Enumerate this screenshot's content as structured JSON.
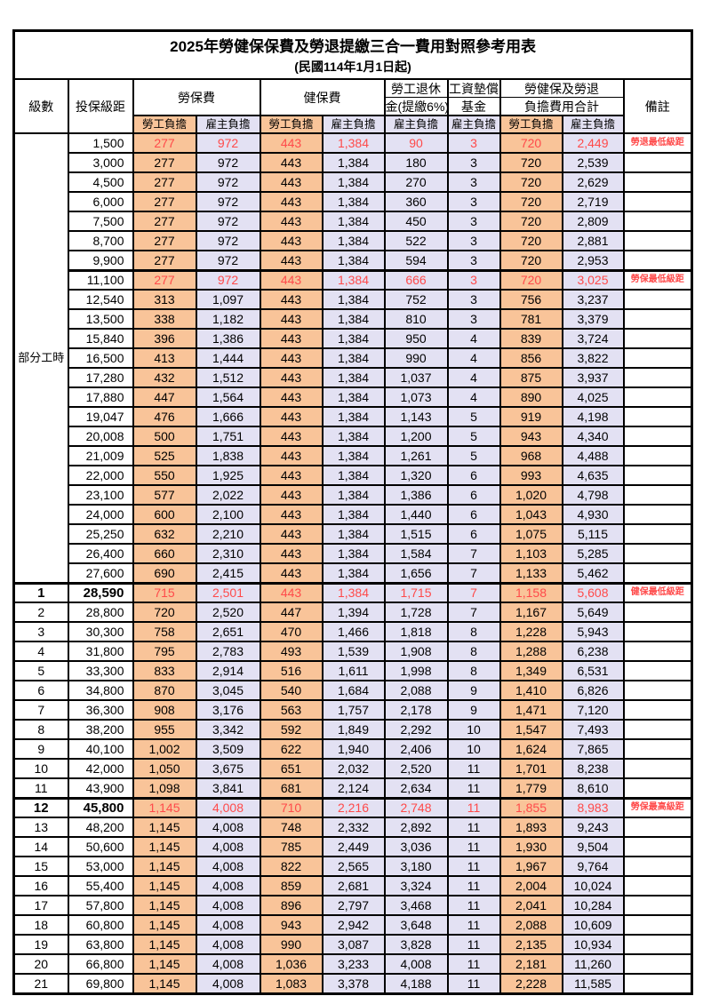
{
  "title": "2025年勞健保保費及勞退提繳三合一費用對照參考用表",
  "subtitle": "(民國114年1月1日起)",
  "part_time_label": "部分工時",
  "part_time_rowspan": 23,
  "colors": {
    "employee_bg": "#F9C499",
    "employer_bg": "#E3E1F3",
    "highlight_red": "#FF4A4A",
    "border": "#000000"
  },
  "header": {
    "level": "級數",
    "bracket": "投保級距",
    "labor_insurance": "勞保費",
    "health_insurance": "健保費",
    "pension_line1": "勞工退休",
    "pension_line2": "金(提繳6%)",
    "wage_fund_line1": "工資墊償",
    "wage_fund_line2": "基金",
    "total_line1": "勞健保及勞退",
    "total_line2": "負擔費用合計",
    "remark": "備註",
    "employee": "勞工負擔",
    "employer": "雇主負擔"
  },
  "rows": [
    {
      "level": "",
      "bracket": "1,500",
      "values": [
        "277",
        "972",
        "443",
        "1,384",
        "90",
        "3",
        "720",
        "2,449"
      ],
      "remark": "勞退最低級距",
      "red": true,
      "thick_top": false,
      "bold": false
    },
    {
      "level": "",
      "bracket": "3,000",
      "values": [
        "277",
        "972",
        "443",
        "1,384",
        "180",
        "3",
        "720",
        "2,539"
      ],
      "remark": "",
      "red": false,
      "thick_top": false,
      "bold": false
    },
    {
      "level": "",
      "bracket": "4,500",
      "values": [
        "277",
        "972",
        "443",
        "1,384",
        "270",
        "3",
        "720",
        "2,629"
      ],
      "remark": "",
      "red": false,
      "thick_top": false,
      "bold": false
    },
    {
      "level": "",
      "bracket": "6,000",
      "values": [
        "277",
        "972",
        "443",
        "1,384",
        "360",
        "3",
        "720",
        "2,719"
      ],
      "remark": "",
      "red": false,
      "thick_top": false,
      "bold": false
    },
    {
      "level": "",
      "bracket": "7,500",
      "values": [
        "277",
        "972",
        "443",
        "1,384",
        "450",
        "3",
        "720",
        "2,809"
      ],
      "remark": "",
      "red": false,
      "thick_top": false,
      "bold": false
    },
    {
      "level": "",
      "bracket": "8,700",
      "values": [
        "277",
        "972",
        "443",
        "1,384",
        "522",
        "3",
        "720",
        "2,881"
      ],
      "remark": "",
      "red": false,
      "thick_top": false,
      "bold": false
    },
    {
      "level": "",
      "bracket": "9,900",
      "values": [
        "277",
        "972",
        "443",
        "1,384",
        "594",
        "3",
        "720",
        "2,953"
      ],
      "remark": "",
      "red": false,
      "thick_top": false,
      "bold": false
    },
    {
      "level": "",
      "bracket": "11,100",
      "values": [
        "277",
        "972",
        "443",
        "1,384",
        "666",
        "3",
        "720",
        "3,025"
      ],
      "remark": "勞保最低級距",
      "red": true,
      "thick_top": true,
      "bold": false
    },
    {
      "level": "",
      "bracket": "12,540",
      "values": [
        "313",
        "1,097",
        "443",
        "1,384",
        "752",
        "3",
        "756",
        "3,237"
      ],
      "remark": "",
      "red": false,
      "thick_top": false,
      "bold": false
    },
    {
      "level": "",
      "bracket": "13,500",
      "values": [
        "338",
        "1,182",
        "443",
        "1,384",
        "810",
        "3",
        "781",
        "3,379"
      ],
      "remark": "",
      "red": false,
      "thick_top": false,
      "bold": false
    },
    {
      "level": "",
      "bracket": "15,840",
      "values": [
        "396",
        "1,386",
        "443",
        "1,384",
        "950",
        "4",
        "839",
        "3,724"
      ],
      "remark": "",
      "red": false,
      "thick_top": false,
      "bold": false
    },
    {
      "level": "",
      "bracket": "16,500",
      "values": [
        "413",
        "1,444",
        "443",
        "1,384",
        "990",
        "4",
        "856",
        "3,822"
      ],
      "remark": "",
      "red": false,
      "thick_top": false,
      "bold": false
    },
    {
      "level": "",
      "bracket": "17,280",
      "values": [
        "432",
        "1,512",
        "443",
        "1,384",
        "1,037",
        "4",
        "875",
        "3,937"
      ],
      "remark": "",
      "red": false,
      "thick_top": false,
      "bold": false
    },
    {
      "level": "",
      "bracket": "17,880",
      "values": [
        "447",
        "1,564",
        "443",
        "1,384",
        "1,073",
        "4",
        "890",
        "4,025"
      ],
      "remark": "",
      "red": false,
      "thick_top": false,
      "bold": false
    },
    {
      "level": "",
      "bracket": "19,047",
      "values": [
        "476",
        "1,666",
        "443",
        "1,384",
        "1,143",
        "5",
        "919",
        "4,198"
      ],
      "remark": "",
      "red": false,
      "thick_top": false,
      "bold": false
    },
    {
      "level": "",
      "bracket": "20,008",
      "values": [
        "500",
        "1,751",
        "443",
        "1,384",
        "1,200",
        "5",
        "943",
        "4,340"
      ],
      "remark": "",
      "red": false,
      "thick_top": false,
      "bold": false
    },
    {
      "level": "",
      "bracket": "21,009",
      "values": [
        "525",
        "1,838",
        "443",
        "1,384",
        "1,261",
        "5",
        "968",
        "4,488"
      ],
      "remark": "",
      "red": false,
      "thick_top": false,
      "bold": false
    },
    {
      "level": "",
      "bracket": "22,000",
      "values": [
        "550",
        "1,925",
        "443",
        "1,384",
        "1,320",
        "6",
        "993",
        "4,635"
      ],
      "remark": "",
      "red": false,
      "thick_top": false,
      "bold": false
    },
    {
      "level": "",
      "bracket": "23,100",
      "values": [
        "577",
        "2,022",
        "443",
        "1,384",
        "1,386",
        "6",
        "1,020",
        "4,798"
      ],
      "remark": "",
      "red": false,
      "thick_top": false,
      "bold": false
    },
    {
      "level": "",
      "bracket": "24,000",
      "values": [
        "600",
        "2,100",
        "443",
        "1,384",
        "1,440",
        "6",
        "1,043",
        "4,930"
      ],
      "remark": "",
      "red": false,
      "thick_top": false,
      "bold": false
    },
    {
      "level": "",
      "bracket": "25,250",
      "values": [
        "632",
        "2,210",
        "443",
        "1,384",
        "1,515",
        "6",
        "1,075",
        "5,115"
      ],
      "remark": "",
      "red": false,
      "thick_top": false,
      "bold": false
    },
    {
      "level": "",
      "bracket": "26,400",
      "values": [
        "660",
        "2,310",
        "443",
        "1,384",
        "1,584",
        "7",
        "1,103",
        "5,285"
      ],
      "remark": "",
      "red": false,
      "thick_top": false,
      "bold": false
    },
    {
      "level": "",
      "bracket": "27,600",
      "values": [
        "690",
        "2,415",
        "443",
        "1,384",
        "1,656",
        "7",
        "1,133",
        "5,462"
      ],
      "remark": "",
      "red": false,
      "thick_top": false,
      "bold": false
    },
    {
      "level": "1",
      "bracket": "28,590",
      "values": [
        "715",
        "2,501",
        "443",
        "1,384",
        "1,715",
        "7",
        "1,158",
        "5,608"
      ],
      "remark": "健保最低級距",
      "red": true,
      "thick_top": true,
      "bold": true
    },
    {
      "level": "2",
      "bracket": "28,800",
      "values": [
        "720",
        "2,520",
        "447",
        "1,394",
        "1,728",
        "7",
        "1,167",
        "5,649"
      ],
      "remark": "",
      "red": false,
      "thick_top": false,
      "bold": false
    },
    {
      "level": "3",
      "bracket": "30,300",
      "values": [
        "758",
        "2,651",
        "470",
        "1,466",
        "1,818",
        "8",
        "1,228",
        "5,943"
      ],
      "remark": "",
      "red": false,
      "thick_top": false,
      "bold": false
    },
    {
      "level": "4",
      "bracket": "31,800",
      "values": [
        "795",
        "2,783",
        "493",
        "1,539",
        "1,908",
        "8",
        "1,288",
        "6,238"
      ],
      "remark": "",
      "red": false,
      "thick_top": false,
      "bold": false
    },
    {
      "level": "5",
      "bracket": "33,300",
      "values": [
        "833",
        "2,914",
        "516",
        "1,611",
        "1,998",
        "8",
        "1,349",
        "6,531"
      ],
      "remark": "",
      "red": false,
      "thick_top": false,
      "bold": false
    },
    {
      "level": "6",
      "bracket": "34,800",
      "values": [
        "870",
        "3,045",
        "540",
        "1,684",
        "2,088",
        "9",
        "1,410",
        "6,826"
      ],
      "remark": "",
      "red": false,
      "thick_top": false,
      "bold": false
    },
    {
      "level": "7",
      "bracket": "36,300",
      "values": [
        "908",
        "3,176",
        "563",
        "1,757",
        "2,178",
        "9",
        "1,471",
        "7,120"
      ],
      "remark": "",
      "red": false,
      "thick_top": false,
      "bold": false
    },
    {
      "level": "8",
      "bracket": "38,200",
      "values": [
        "955",
        "3,342",
        "592",
        "1,849",
        "2,292",
        "10",
        "1,547",
        "7,493"
      ],
      "remark": "",
      "red": false,
      "thick_top": false,
      "bold": false
    },
    {
      "level": "9",
      "bracket": "40,100",
      "values": [
        "1,002",
        "3,509",
        "622",
        "1,940",
        "2,406",
        "10",
        "1,624",
        "7,865"
      ],
      "remark": "",
      "red": false,
      "thick_top": false,
      "bold": false
    },
    {
      "level": "10",
      "bracket": "42,000",
      "values": [
        "1,050",
        "3,675",
        "651",
        "2,032",
        "2,520",
        "11",
        "1,701",
        "8,238"
      ],
      "remark": "",
      "red": false,
      "thick_top": false,
      "bold": false
    },
    {
      "level": "11",
      "bracket": "43,900",
      "values": [
        "1,098",
        "3,841",
        "681",
        "2,124",
        "2,634",
        "11",
        "1,779",
        "8,610"
      ],
      "remark": "",
      "red": false,
      "thick_top": false,
      "bold": false
    },
    {
      "level": "12",
      "bracket": "45,800",
      "values": [
        "1,145",
        "4,008",
        "710",
        "2,216",
        "2,748",
        "11",
        "1,855",
        "8,983"
      ],
      "remark": "勞保最高級距",
      "red": true,
      "thick_top": true,
      "bold": true
    },
    {
      "level": "13",
      "bracket": "48,200",
      "values": [
        "1,145",
        "4,008",
        "748",
        "2,332",
        "2,892",
        "11",
        "1,893",
        "9,243"
      ],
      "remark": "",
      "red": false,
      "thick_top": false,
      "bold": false
    },
    {
      "level": "14",
      "bracket": "50,600",
      "values": [
        "1,145",
        "4,008",
        "785",
        "2,449",
        "3,036",
        "11",
        "1,930",
        "9,504"
      ],
      "remark": "",
      "red": false,
      "thick_top": false,
      "bold": false
    },
    {
      "level": "15",
      "bracket": "53,000",
      "values": [
        "1,145",
        "4,008",
        "822",
        "2,565",
        "3,180",
        "11",
        "1,967",
        "9,764"
      ],
      "remark": "",
      "red": false,
      "thick_top": false,
      "bold": false
    },
    {
      "level": "16",
      "bracket": "55,400",
      "values": [
        "1,145",
        "4,008",
        "859",
        "2,681",
        "3,324",
        "11",
        "2,004",
        "10,024"
      ],
      "remark": "",
      "red": false,
      "thick_top": false,
      "bold": false
    },
    {
      "level": "17",
      "bracket": "57,800",
      "values": [
        "1,145",
        "4,008",
        "896",
        "2,797",
        "3,468",
        "11",
        "2,041",
        "10,284"
      ],
      "remark": "",
      "red": false,
      "thick_top": false,
      "bold": false
    },
    {
      "level": "18",
      "bracket": "60,800",
      "values": [
        "1,145",
        "4,008",
        "943",
        "2,942",
        "3,648",
        "11",
        "2,088",
        "10,609"
      ],
      "remark": "",
      "red": false,
      "thick_top": false,
      "bold": false
    },
    {
      "level": "19",
      "bracket": "63,800",
      "values": [
        "1,145",
        "4,008",
        "990",
        "3,087",
        "3,828",
        "11",
        "2,135",
        "10,934"
      ],
      "remark": "",
      "red": false,
      "thick_top": false,
      "bold": false
    },
    {
      "level": "20",
      "bracket": "66,800",
      "values": [
        "1,145",
        "4,008",
        "1,036",
        "3,233",
        "4,008",
        "11",
        "2,181",
        "11,260"
      ],
      "remark": "",
      "red": false,
      "thick_top": false,
      "bold": false
    },
    {
      "level": "21",
      "bracket": "69,800",
      "values": [
        "1,145",
        "4,008",
        "1,083",
        "3,378",
        "4,188",
        "11",
        "2,228",
        "11,585"
      ],
      "remark": "",
      "red": false,
      "thick_top": false,
      "bold": false
    }
  ]
}
